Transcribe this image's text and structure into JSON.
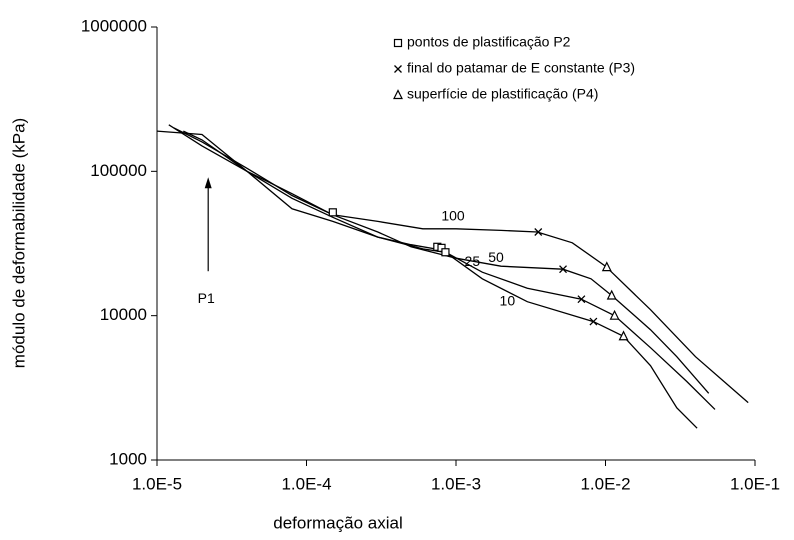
{
  "chart_data": {
    "type": "line",
    "x_label": "deformação axial",
    "y_label": "módulo de deformabilidade (kPa)",
    "xscale": "log",
    "yscale": "log",
    "xlim": [
      1e-05,
      0.1
    ],
    "ylim": [
      1000,
      1000000
    ],
    "xticks": [
      {
        "value": 1e-05,
        "label": "1.0E-5"
      },
      {
        "value": 0.0001,
        "label": "1.0E-4"
      },
      {
        "value": 0.001,
        "label": "1.0E-3"
      },
      {
        "value": 0.01,
        "label": "1.0E-2"
      },
      {
        "value": 0.1,
        "label": "1.0E-1"
      }
    ],
    "yticks": [
      1000,
      10000,
      100000,
      1000000
    ],
    "grid": false,
    "legend": "upper right",
    "lines": [
      {
        "name": "100",
        "color": "#000000",
        "x": [
          1.2e-05,
          2e-05,
          4e-05,
          8e-05,
          0.00015,
          0.0003,
          0.0006,
          0.001,
          0.002,
          0.0035,
          0.006,
          0.01,
          0.02,
          0.04,
          0.09
        ],
        "values": [
          210000,
          150000,
          100000,
          70000,
          50000,
          45000,
          40000,
          40000,
          39000,
          38000,
          32000,
          22000,
          11000,
          5200,
          2500
        ]
      },
      {
        "name": "50",
        "color": "#000000",
        "x": [
          1.3e-05,
          2e-05,
          4e-05,
          8e-05,
          0.00015,
          0.0003,
          0.0005,
          0.001,
          0.002,
          0.0052,
          0.008,
          0.011,
          0.02,
          0.03,
          0.049
        ],
        "values": [
          200000,
          160000,
          105000,
          68000,
          50000,
          38000,
          30000,
          25000,
          22000,
          21000,
          18000,
          13800,
          8000,
          5200,
          2900
        ]
      },
      {
        "name": "25",
        "color": "#000000",
        "x": [
          1.5e-05,
          2e-05,
          4e-05,
          8e-05,
          0.00015,
          0.0003,
          0.0005,
          0.0008,
          0.0015,
          0.003,
          0.0069,
          0.0115,
          0.02,
          0.035,
          0.054
        ],
        "values": [
          190000,
          165000,
          100000,
          65000,
          48000,
          35000,
          31000,
          28500,
          20000,
          15500,
          13000,
          10000,
          6000,
          3500,
          2240
        ]
      },
      {
        "name": "10",
        "color": "#000000",
        "x": [
          1e-05,
          2e-05,
          4e-05,
          8e-05,
          0.00015,
          0.0003,
          0.0006,
          0.00085,
          0.0015,
          0.003,
          0.0083,
          0.0132,
          0.02,
          0.03,
          0.041
        ],
        "values": [
          190000,
          180000,
          100000,
          55000,
          45000,
          35000,
          29000,
          27500,
          18000,
          12500,
          9100,
          7200,
          4500,
          2300,
          1660
        ]
      }
    ],
    "series": [
      {
        "name": "pontos de plastificação P2",
        "marker": "square",
        "color": "#000000",
        "x": [
          0.00015,
          0.00075,
          0.0008,
          0.00085
        ],
        "values": [
          52000,
          30000,
          29500,
          27500
        ]
      },
      {
        "name": "final do patamar de E constante (P3)",
        "marker": "x",
        "color": "#000000",
        "x": [
          0.00355,
          0.0052,
          0.0069,
          0.0083
        ],
        "values": [
          38000,
          21000,
          13000,
          9100
        ]
      },
      {
        "name": "superfície de plastificação (P4)",
        "marker": "triangle",
        "color": "#000000",
        "x": [
          0.0102,
          0.011,
          0.0115,
          0.0132
        ],
        "values": [
          21700,
          13800,
          10000,
          7200
        ]
      }
    ],
    "annotations": [
      {
        "text": "P1",
        "x": 2.2e-05,
        "y": 13000
      }
    ]
  }
}
